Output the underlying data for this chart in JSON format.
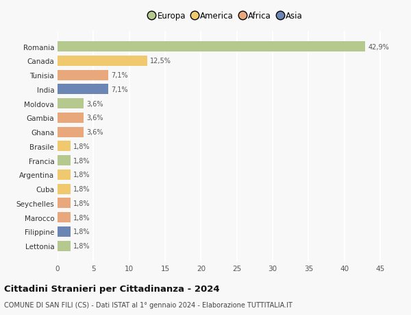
{
  "countries": [
    "Lettonia",
    "Filippine",
    "Marocco",
    "Seychelles",
    "Cuba",
    "Argentina",
    "Francia",
    "Brasile",
    "Ghana",
    "Gambia",
    "Moldova",
    "India",
    "Tunisia",
    "Canada",
    "Romania"
  ],
  "values": [
    1.8,
    1.8,
    1.8,
    1.8,
    1.8,
    1.8,
    1.8,
    1.8,
    3.6,
    3.6,
    3.6,
    7.1,
    7.1,
    12.5,
    42.9
  ],
  "labels": [
    "1,8%",
    "1,8%",
    "1,8%",
    "1,8%",
    "1,8%",
    "1,8%",
    "1,8%",
    "1,8%",
    "3,6%",
    "3,6%",
    "3,6%",
    "7,1%",
    "7,1%",
    "12,5%",
    "42,9%"
  ],
  "colors": [
    "#b5c98e",
    "#6b85b5",
    "#e8a87c",
    "#e8a87c",
    "#f0c96e",
    "#f0c96e",
    "#b5c98e",
    "#f0c96e",
    "#e8a87c",
    "#e8a87c",
    "#b5c98e",
    "#6b85b5",
    "#e8a87c",
    "#f0c96e",
    "#b5c98e"
  ],
  "legend_labels": [
    "Europa",
    "America",
    "Africa",
    "Asia"
  ],
  "legend_colors": [
    "#b5c98e",
    "#f0c96e",
    "#e8a87c",
    "#6b85b5"
  ],
  "title": "Cittadini Stranieri per Cittadinanza - 2024",
  "subtitle": "COMUNE DI SAN FILI (CS) - Dati ISTAT al 1° gennaio 2024 - Elaborazione TUTTITALIA.IT",
  "xlim": [
    0,
    47
  ],
  "xticks": [
    0,
    5,
    10,
    15,
    20,
    25,
    30,
    35,
    40,
    45
  ],
  "background_color": "#f8f8f8",
  "grid_color": "#ffffff",
  "bar_height": 0.72
}
